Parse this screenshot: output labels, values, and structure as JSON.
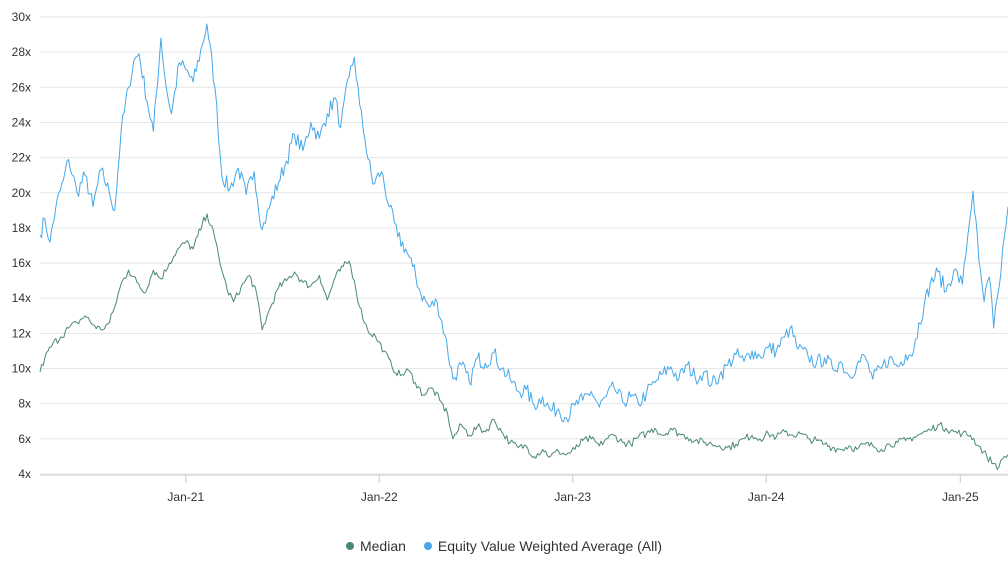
{
  "chart_data": {
    "type": "line",
    "title": "",
    "xlabel": "",
    "ylabel": "",
    "x_range": [
      "2020-04-01",
      "2025-04-01"
    ],
    "ylim": [
      4,
      30
    ],
    "y_ticks": [
      {
        "value": 4,
        "label": "4x"
      },
      {
        "value": 6,
        "label": "6x"
      },
      {
        "value": 8,
        "label": "8x"
      },
      {
        "value": 10,
        "label": "10x"
      },
      {
        "value": 12,
        "label": "12x"
      },
      {
        "value": 14,
        "label": "14x"
      },
      {
        "value": 16,
        "label": "16x"
      },
      {
        "value": 18,
        "label": "18x"
      },
      {
        "value": 20,
        "label": "20x"
      },
      {
        "value": 22,
        "label": "22x"
      },
      {
        "value": 24,
        "label": "24x"
      },
      {
        "value": 26,
        "label": "26x"
      },
      {
        "value": 28,
        "label": "28x"
      },
      {
        "value": 30,
        "label": "30x"
      }
    ],
    "x_ticks": [
      {
        "value": "2021-01-01",
        "label": "Jan-21"
      },
      {
        "value": "2022-01-01",
        "label": "Jan-22"
      },
      {
        "value": "2023-01-01",
        "label": "Jan-23"
      },
      {
        "value": "2024-01-01",
        "label": "Jan-24"
      },
      {
        "value": "2025-01-01",
        "label": "Jan-25"
      }
    ],
    "grid": true,
    "legend_position": "bottom-center",
    "series": [
      {
        "name": "Median",
        "color": "#4a8a6e",
        "points": [
          [
            "2020-04-01",
            9.8
          ],
          [
            "2020-04-10",
            10.6
          ],
          [
            "2020-04-25",
            11.4
          ],
          [
            "2020-05-10",
            11.8
          ],
          [
            "2020-05-25",
            12.3
          ],
          [
            "2020-06-10",
            12.6
          ],
          [
            "2020-06-25",
            13.0
          ],
          [
            "2020-07-10",
            12.5
          ],
          [
            "2020-07-25",
            12.2
          ],
          [
            "2020-08-10",
            12.6
          ],
          [
            "2020-08-20",
            13.5
          ],
          [
            "2020-09-01",
            14.8
          ],
          [
            "2020-09-15",
            15.6
          ],
          [
            "2020-10-01",
            14.9
          ],
          [
            "2020-10-15",
            14.3
          ],
          [
            "2020-11-01",
            15.6
          ],
          [
            "2020-11-15",
            15.1
          ],
          [
            "2020-12-01",
            16.0
          ],
          [
            "2020-12-15",
            16.7
          ],
          [
            "2021-01-01",
            17.2
          ],
          [
            "2021-01-15",
            16.8
          ],
          [
            "2021-02-01",
            18.2
          ],
          [
            "2021-02-10",
            18.8
          ],
          [
            "2021-02-25",
            17.4
          ],
          [
            "2021-03-10",
            15.6
          ],
          [
            "2021-03-20",
            14.5
          ],
          [
            "2021-04-01",
            13.8
          ],
          [
            "2021-04-15",
            14.6
          ],
          [
            "2021-05-01",
            15.3
          ],
          [
            "2021-05-15",
            14.2
          ],
          [
            "2021-05-25",
            12.2
          ],
          [
            "2021-06-10",
            13.5
          ],
          [
            "2021-06-25",
            14.6
          ],
          [
            "2021-07-10",
            15.0
          ],
          [
            "2021-07-25",
            15.5
          ],
          [
            "2021-08-10",
            14.9
          ],
          [
            "2021-08-25",
            14.7
          ],
          [
            "2021-09-10",
            15.3
          ],
          [
            "2021-09-25",
            13.9
          ],
          [
            "2021-10-10",
            15.2
          ],
          [
            "2021-10-25",
            15.8
          ],
          [
            "2021-11-05",
            16.1
          ],
          [
            "2021-11-15",
            15.0
          ],
          [
            "2021-11-25",
            13.5
          ],
          [
            "2021-12-10",
            12.2
          ],
          [
            "2021-12-25",
            11.8
          ],
          [
            "2022-01-10",
            11.0
          ],
          [
            "2022-01-25",
            10.1
          ],
          [
            "2022-02-10",
            9.6
          ],
          [
            "2022-02-25",
            9.9
          ],
          [
            "2022-03-10",
            9.2
          ],
          [
            "2022-03-25",
            8.5
          ],
          [
            "2022-04-10",
            8.9
          ],
          [
            "2022-04-25",
            8.2
          ],
          [
            "2022-05-10",
            7.4
          ],
          [
            "2022-05-20",
            6.0
          ],
          [
            "2022-06-05",
            6.8
          ],
          [
            "2022-06-20",
            6.2
          ],
          [
            "2022-07-05",
            6.7
          ],
          [
            "2022-07-20",
            6.4
          ],
          [
            "2022-08-05",
            7.1
          ],
          [
            "2022-08-20",
            6.4
          ],
          [
            "2022-09-05",
            5.8
          ],
          [
            "2022-09-20",
            5.5
          ],
          [
            "2022-10-05",
            5.6
          ],
          [
            "2022-10-20",
            5.0
          ],
          [
            "2022-11-05",
            5.4
          ],
          [
            "2022-11-20",
            5.0
          ],
          [
            "2022-12-05",
            5.3
          ],
          [
            "2022-12-20",
            5.1
          ],
          [
            "2023-01-05",
            5.4
          ],
          [
            "2023-01-20",
            5.9
          ],
          [
            "2023-02-05",
            6.0
          ],
          [
            "2023-02-20",
            5.6
          ],
          [
            "2023-03-05",
            6.0
          ],
          [
            "2023-03-20",
            6.2
          ],
          [
            "2023-04-05",
            5.8
          ],
          [
            "2023-04-20",
            5.7
          ],
          [
            "2023-05-05",
            6.1
          ],
          [
            "2023-05-20",
            6.3
          ],
          [
            "2023-06-05",
            6.6
          ],
          [
            "2023-06-20",
            6.2
          ],
          [
            "2023-07-05",
            6.6
          ],
          [
            "2023-07-20",
            6.3
          ],
          [
            "2023-08-05",
            6.1
          ],
          [
            "2023-08-20",
            5.9
          ],
          [
            "2023-09-05",
            5.8
          ],
          [
            "2023-09-20",
            5.7
          ],
          [
            "2023-10-05",
            5.6
          ],
          [
            "2023-10-20",
            5.5
          ],
          [
            "2023-11-05",
            5.7
          ],
          [
            "2023-11-20",
            6.0
          ],
          [
            "2023-12-05",
            6.2
          ],
          [
            "2023-12-20",
            6.0
          ],
          [
            "2024-01-05",
            6.3
          ],
          [
            "2024-01-20",
            6.1
          ],
          [
            "2024-02-05",
            6.4
          ],
          [
            "2024-02-20",
            6.2
          ],
          [
            "2024-03-05",
            6.3
          ],
          [
            "2024-03-20",
            6.0
          ],
          [
            "2024-04-05",
            5.9
          ],
          [
            "2024-04-20",
            5.7
          ],
          [
            "2024-05-05",
            5.5
          ],
          [
            "2024-05-20",
            5.4
          ],
          [
            "2024-06-05",
            5.6
          ],
          [
            "2024-06-20",
            5.4
          ],
          [
            "2024-07-05",
            5.7
          ],
          [
            "2024-07-20",
            5.6
          ],
          [
            "2024-08-05",
            5.4
          ],
          [
            "2024-08-20",
            5.7
          ],
          [
            "2024-09-05",
            5.8
          ],
          [
            "2024-09-20",
            5.9
          ],
          [
            "2024-10-05",
            6.1
          ],
          [
            "2024-10-20",
            6.3
          ],
          [
            "2024-11-05",
            6.5
          ],
          [
            "2024-11-20",
            6.8
          ],
          [
            "2024-12-05",
            6.6
          ],
          [
            "2024-12-20",
            6.4
          ],
          [
            "2025-01-05",
            6.3
          ],
          [
            "2025-01-20",
            6.2
          ],
          [
            "2025-02-05",
            5.6
          ],
          [
            "2025-02-20",
            5.0
          ],
          [
            "2025-03-05",
            4.6
          ],
          [
            "2025-03-15",
            4.4
          ],
          [
            "2025-03-25",
            5.0
          ],
          [
            "2025-04-01",
            5.1
          ]
        ]
      },
      {
        "name": "Equity Value Weighted Average (All)",
        "color": "#45a8ea",
        "points": [
          [
            "2020-04-01",
            17.6
          ],
          [
            "2020-04-10",
            18.5
          ],
          [
            "2020-04-20",
            17.2
          ],
          [
            "2020-05-01",
            19.2
          ],
          [
            "2020-05-15",
            20.7
          ],
          [
            "2020-05-25",
            21.9
          ],
          [
            "2020-06-10",
            20.0
          ],
          [
            "2020-06-25",
            21.0
          ],
          [
            "2020-07-10",
            19.2
          ],
          [
            "2020-07-25",
            21.3
          ],
          [
            "2020-08-10",
            20.0
          ],
          [
            "2020-08-20",
            19.0
          ],
          [
            "2020-09-01",
            23.5
          ],
          [
            "2020-09-15",
            26.0
          ],
          [
            "2020-09-25",
            27.5
          ],
          [
            "2020-10-05",
            27.9
          ],
          [
            "2020-10-20",
            25.2
          ],
          [
            "2020-11-01",
            23.5
          ],
          [
            "2020-11-15",
            28.8
          ],
          [
            "2020-11-25",
            26.0
          ],
          [
            "2020-12-05",
            24.5
          ],
          [
            "2020-12-20",
            27.4
          ],
          [
            "2021-01-01",
            27.0
          ],
          [
            "2021-01-15",
            26.3
          ],
          [
            "2021-02-01",
            28.4
          ],
          [
            "2021-02-10",
            29.6
          ],
          [
            "2021-02-25",
            26.0
          ],
          [
            "2021-03-10",
            21.0
          ],
          [
            "2021-03-25",
            20.2
          ],
          [
            "2021-04-10",
            21.4
          ],
          [
            "2021-04-25",
            19.9
          ],
          [
            "2021-05-10",
            21.2
          ],
          [
            "2021-05-25",
            17.9
          ],
          [
            "2021-06-10",
            19.4
          ],
          [
            "2021-06-25",
            20.6
          ],
          [
            "2021-07-10",
            21.8
          ],
          [
            "2021-07-25",
            23.3
          ],
          [
            "2021-08-10",
            22.4
          ],
          [
            "2021-08-25",
            24.0
          ],
          [
            "2021-09-10",
            23.1
          ],
          [
            "2021-09-25",
            24.5
          ],
          [
            "2021-10-10",
            25.4
          ],
          [
            "2021-10-20",
            23.7
          ],
          [
            "2021-11-05",
            26.6
          ],
          [
            "2021-11-15",
            27.7
          ],
          [
            "2021-11-25",
            25.0
          ],
          [
            "2021-12-05",
            23.0
          ],
          [
            "2021-12-20",
            20.5
          ],
          [
            "2022-01-05",
            21.2
          ],
          [
            "2022-01-20",
            19.2
          ],
          [
            "2022-02-05",
            17.5
          ],
          [
            "2022-02-20",
            16.8
          ],
          [
            "2022-03-05",
            15.8
          ],
          [
            "2022-03-20",
            14.3
          ],
          [
            "2022-04-05",
            13.5
          ],
          [
            "2022-04-20",
            13.8
          ],
          [
            "2022-05-05",
            11.9
          ],
          [
            "2022-05-20",
            9.4
          ],
          [
            "2022-06-05",
            10.2
          ],
          [
            "2022-06-20",
            9.2
          ],
          [
            "2022-07-05",
            10.6
          ],
          [
            "2022-07-20",
            10.3
          ],
          [
            "2022-08-05",
            10.9
          ],
          [
            "2022-08-20",
            10.0
          ],
          [
            "2022-09-05",
            9.4
          ],
          [
            "2022-09-20",
            8.7
          ],
          [
            "2022-10-05",
            8.8
          ],
          [
            "2022-10-20",
            7.9
          ],
          [
            "2022-11-05",
            8.4
          ],
          [
            "2022-11-20",
            7.6
          ],
          [
            "2022-12-05",
            7.7
          ],
          [
            "2022-12-20",
            7.2
          ],
          [
            "2023-01-05",
            7.9
          ],
          [
            "2023-01-20",
            8.2
          ],
          [
            "2023-02-05",
            8.7
          ],
          [
            "2023-02-20",
            7.8
          ],
          [
            "2023-03-05",
            8.4
          ],
          [
            "2023-03-20",
            8.9
          ],
          [
            "2023-04-05",
            8.1
          ],
          [
            "2023-04-20",
            8.4
          ],
          [
            "2023-05-05",
            8.0
          ],
          [
            "2023-05-20",
            8.6
          ],
          [
            "2023-06-05",
            9.2
          ],
          [
            "2023-06-20",
            9.7
          ],
          [
            "2023-07-05",
            10.1
          ],
          [
            "2023-07-20",
            9.4
          ],
          [
            "2023-08-05",
            10.2
          ],
          [
            "2023-08-20",
            9.5
          ],
          [
            "2023-09-05",
            9.8
          ],
          [
            "2023-09-20",
            9.1
          ],
          [
            "2023-10-05",
            9.6
          ],
          [
            "2023-10-20",
            10.2
          ],
          [
            "2023-11-05",
            10.8
          ],
          [
            "2023-11-20",
            10.4
          ],
          [
            "2023-12-05",
            11.0
          ],
          [
            "2023-12-20",
            10.7
          ],
          [
            "2024-01-05",
            11.2
          ],
          [
            "2024-01-20",
            11.0
          ],
          [
            "2024-02-05",
            11.8
          ],
          [
            "2024-02-15",
            12.3
          ],
          [
            "2024-03-01",
            11.1
          ],
          [
            "2024-03-20",
            10.7
          ],
          [
            "2024-04-05",
            10.3
          ],
          [
            "2024-04-20",
            10.6
          ],
          [
            "2024-05-05",
            10.0
          ],
          [
            "2024-05-20",
            10.4
          ],
          [
            "2024-06-05",
            9.6
          ],
          [
            "2024-06-20",
            10.2
          ],
          [
            "2024-07-05",
            10.7
          ],
          [
            "2024-07-20",
            9.4
          ],
          [
            "2024-08-05",
            10.0
          ],
          [
            "2024-08-20",
            10.6
          ],
          [
            "2024-09-05",
            10.1
          ],
          [
            "2024-09-20",
            10.8
          ],
          [
            "2024-10-05",
            11.0
          ],
          [
            "2024-10-15",
            12.6
          ],
          [
            "2024-10-25",
            13.6
          ],
          [
            "2024-11-05",
            14.8
          ],
          [
            "2024-11-20",
            15.5
          ],
          [
            "2024-12-05",
            14.4
          ],
          [
            "2024-12-20",
            15.6
          ],
          [
            "2025-01-05",
            14.8
          ],
          [
            "2025-01-15",
            17.5
          ],
          [
            "2025-01-25",
            20.1
          ],
          [
            "2025-02-05",
            16.2
          ],
          [
            "2025-02-15",
            13.8
          ],
          [
            "2025-02-25",
            15.2
          ],
          [
            "2025-03-05",
            12.3
          ],
          [
            "2025-03-15",
            14.6
          ],
          [
            "2025-03-25",
            17.5
          ],
          [
            "2025-04-01",
            19.2
          ]
        ]
      }
    ]
  },
  "legend": {
    "items": [
      {
        "label": "Median",
        "color": "#4a8a6e"
      },
      {
        "label": "Equity Value Weighted Average (All)",
        "color": "#45a8ea"
      }
    ]
  }
}
